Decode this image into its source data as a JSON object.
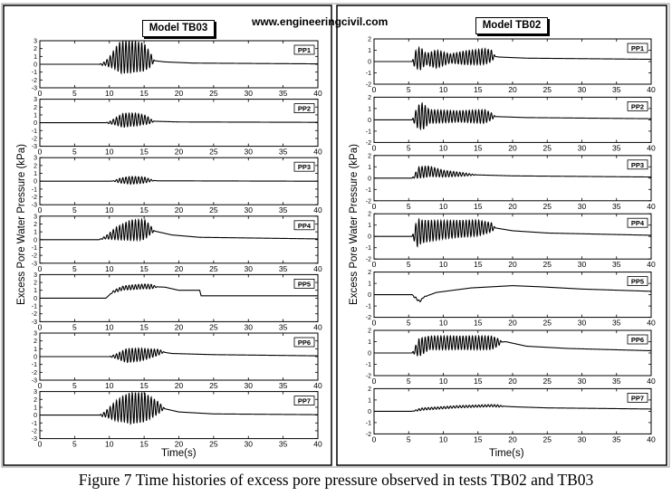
{
  "watermark": "www.engineeringcivil.com",
  "caption": "Figure 7 Time histories of excess pore pressure observed in tests TB02 and TB03",
  "chart_data": [
    {
      "type": "line",
      "title": "Model TB03",
      "xlabel": "Time(s)",
      "ylabel": "Excess Pore Water Pressure (kPa)",
      "xlim": [
        0,
        40
      ],
      "xticks": [
        0,
        5,
        10,
        15,
        20,
        25,
        30,
        35,
        40
      ],
      "ylim": [
        -3,
        3
      ],
      "yticks": [
        3,
        2,
        1,
        0,
        -1,
        -2,
        -3
      ],
      "grid": false,
      "series": [
        {
          "name": "PP1",
          "values": [
            [
              0,
              0
            ],
            [
              9,
              0
            ],
            [
              10,
              0.3
            ],
            [
              11,
              0.8
            ],
            [
              13,
              1.0
            ],
            [
              15,
              0.9
            ],
            [
              16,
              0.5
            ],
            [
              18,
              0.3
            ],
            [
              22,
              0.15
            ],
            [
              40,
              0.05
            ]
          ],
          "amp": [
            [
              8.5,
              0
            ],
            [
              9.5,
              0.3
            ],
            [
              10.5,
              1.0
            ],
            [
              11.5,
              2.0
            ],
            [
              13,
              2.1
            ],
            [
              15,
              1.8
            ],
            [
              16,
              0.8
            ],
            [
              16.5,
              0
            ]
          ]
        },
        {
          "name": "PP2",
          "values": [
            [
              0,
              0
            ],
            [
              10,
              0
            ],
            [
              11,
              0.2
            ],
            [
              13,
              0.4
            ],
            [
              15,
              0.4
            ],
            [
              16,
              0.2
            ],
            [
              20,
              0.1
            ],
            [
              40,
              0.05
            ]
          ],
          "amp": [
            [
              9.5,
              0
            ],
            [
              10.5,
              0.3
            ],
            [
              12,
              0.9
            ],
            [
              14,
              0.8
            ],
            [
              15.5,
              0.5
            ],
            [
              16.5,
              0
            ]
          ]
        },
        {
          "name": "PP3",
          "values": [
            [
              0,
              0
            ],
            [
              10,
              0
            ],
            [
              12,
              0.1
            ],
            [
              15,
              0.15
            ],
            [
              17,
              0.05
            ],
            [
              40,
              0
            ]
          ],
          "amp": [
            [
              10.5,
              0
            ],
            [
              11.5,
              0.3
            ],
            [
              13,
              0.5
            ],
            [
              15,
              0.4
            ],
            [
              16.5,
              0
            ]
          ]
        },
        {
          "name": "PP4",
          "values": [
            [
              0,
              0
            ],
            [
              8.5,
              0
            ],
            [
              9.5,
              0.3
            ],
            [
              11,
              0.8
            ],
            [
              13,
              1.2
            ],
            [
              15.5,
              1.3
            ],
            [
              16.5,
              1.1
            ],
            [
              19,
              0.6
            ],
            [
              23,
              0.3
            ],
            [
              40,
              0.1
            ]
          ],
          "amp": [
            [
              8.5,
              0
            ],
            [
              9.5,
              0.2
            ],
            [
              11,
              0.8
            ],
            [
              13,
              1.3
            ],
            [
              15,
              1.3
            ],
            [
              16,
              0.5
            ],
            [
              16.5,
              0
            ]
          ]
        },
        {
          "name": "PP5",
          "values": [
            [
              0,
              0
            ],
            [
              9.5,
              0
            ],
            [
              10.5,
              0.8
            ],
            [
              12,
              1.3
            ],
            [
              15,
              1.5
            ],
            [
              18,
              1.4
            ],
            [
              20,
              1.0
            ],
            [
              23,
              1.0
            ],
            [
              23.2,
              0.3
            ],
            [
              40,
              0.3
            ]
          ],
          "amp": [
            [
              10,
              0
            ],
            [
              11,
              0.2
            ],
            [
              13,
              0.3
            ],
            [
              16,
              0.3
            ],
            [
              17,
              0
            ]
          ]
        },
        {
          "name": "PP6",
          "values": [
            [
              0,
              0
            ],
            [
              10,
              0
            ],
            [
              12,
              0.1
            ],
            [
              15,
              0.3
            ],
            [
              17.5,
              0.6
            ],
            [
              19,
              0.4
            ],
            [
              25,
              0.25
            ],
            [
              40,
              0.1
            ]
          ],
          "amp": [
            [
              10,
              0
            ],
            [
              11,
              0.3
            ],
            [
              12.5,
              0.9
            ],
            [
              14.5,
              0.8
            ],
            [
              17,
              0.4
            ],
            [
              18,
              0
            ]
          ]
        },
        {
          "name": "PP7",
          "values": [
            [
              0,
              0
            ],
            [
              9,
              0
            ],
            [
              10,
              0.3
            ],
            [
              12,
              0.8
            ],
            [
              15,
              1.0
            ],
            [
              17.5,
              0.9
            ],
            [
              20,
              0.4
            ],
            [
              25,
              0.15
            ],
            [
              40,
              0.05
            ]
          ],
          "amp": [
            [
              8.5,
              0
            ],
            [
              9.5,
              0.4
            ],
            [
              11,
              1.3
            ],
            [
              13,
              2.0
            ],
            [
              15,
              1.9
            ],
            [
              17,
              0.8
            ],
            [
              18,
              0
            ]
          ]
        }
      ]
    },
    {
      "type": "line",
      "title": "Model TB02",
      "xlabel": "Time(s)",
      "ylabel": "Excess Pore Water Pressure (kPa)",
      "xlim": [
        0,
        40
      ],
      "xticks": [
        0,
        5,
        10,
        15,
        20,
        25,
        30,
        35,
        40
      ],
      "ylim": [
        -2,
        2
      ],
      "yticks": [
        2,
        1,
        0,
        -1,
        -2
      ],
      "grid": false,
      "series": [
        {
          "name": "PP1",
          "values": [
            [
              0,
              0
            ],
            [
              5.5,
              0
            ],
            [
              6.5,
              0.3
            ],
            [
              8,
              0.2
            ],
            [
              12,
              0.3
            ],
            [
              15,
              0.4
            ],
            [
              17,
              0.5
            ],
            [
              18,
              0.4
            ],
            [
              22,
              0.3
            ],
            [
              40,
              0.2
            ]
          ],
          "amp": [
            [
              5.5,
              0
            ],
            [
              6,
              0.8
            ],
            [
              6.7,
              1.0
            ],
            [
              7.5,
              0.5
            ],
            [
              9,
              0.8
            ],
            [
              11,
              0.4
            ],
            [
              13,
              0.6
            ],
            [
              16,
              0.7
            ],
            [
              17,
              0.5
            ],
            [
              17.5,
              0
            ]
          ]
        },
        {
          "name": "PP2",
          "values": [
            [
              0,
              0
            ],
            [
              5.5,
              0
            ],
            [
              6.5,
              0.3
            ],
            [
              10,
              0.3
            ],
            [
              15,
              0.3
            ],
            [
              17,
              0.3
            ],
            [
              22,
              0.2
            ],
            [
              40,
              0.1
            ]
          ],
          "amp": [
            [
              5.5,
              0
            ],
            [
              6.3,
              1.0
            ],
            [
              7,
              1.2
            ],
            [
              8,
              0.6
            ],
            [
              12,
              0.5
            ],
            [
              16,
              0.6
            ],
            [
              17,
              0.3
            ],
            [
              17.5,
              0
            ]
          ]
        },
        {
          "name": "PP3",
          "values": [
            [
              0,
              0
            ],
            [
              5.5,
              0
            ],
            [
              6.5,
              0.5
            ],
            [
              8,
              0.6
            ],
            [
              10,
              0.4
            ],
            [
              14,
              0.3
            ],
            [
              20,
              0.2
            ],
            [
              40,
              0.1
            ]
          ],
          "amp": [
            [
              5.5,
              0
            ],
            [
              6.5,
              0.5
            ],
            [
              7.5,
              0.5
            ],
            [
              10,
              0.3
            ],
            [
              13,
              0.15
            ],
            [
              15,
              0
            ]
          ]
        },
        {
          "name": "PP4",
          "values": [
            [
              0,
              0
            ],
            [
              5.5,
              0
            ],
            [
              6.5,
              0.4
            ],
            [
              10,
              0.6
            ],
            [
              17,
              0.8
            ],
            [
              20,
              0.5
            ],
            [
              25,
              0.3
            ],
            [
              40,
              0.1
            ]
          ],
          "amp": [
            [
              5.5,
              0
            ],
            [
              6.2,
              1.2
            ],
            [
              7,
              1.0
            ],
            [
              10,
              0.8
            ],
            [
              15,
              0.7
            ],
            [
              17,
              0.4
            ],
            [
              17.5,
              0
            ]
          ]
        },
        {
          "name": "PP5",
          "values": [
            [
              0,
              0
            ],
            [
              5.5,
              0
            ],
            [
              6,
              -0.3
            ],
            [
              6.6,
              -0.6
            ],
            [
              7.2,
              -0.2
            ],
            [
              9,
              0.2
            ],
            [
              14,
              0.6
            ],
            [
              20,
              0.8
            ],
            [
              24,
              0.7
            ],
            [
              30,
              0.5
            ],
            [
              40,
              0.3
            ]
          ],
          "amp": [
            [
              5.5,
              0
            ],
            [
              6,
              0.1
            ],
            [
              7,
              0.05
            ],
            [
              8,
              0
            ]
          ]
        },
        {
          "name": "PP6",
          "values": [
            [
              0,
              0
            ],
            [
              5.5,
              0
            ],
            [
              6.5,
              0.5
            ],
            [
              8,
              0.9
            ],
            [
              12,
              0.9
            ],
            [
              17,
              0.9
            ],
            [
              19,
              1.0
            ],
            [
              22,
              0.6
            ],
            [
              28,
              0.4
            ],
            [
              40,
              0.2
            ]
          ],
          "amp": [
            [
              5.5,
              0
            ],
            [
              6.5,
              0.8
            ],
            [
              8,
              0.6
            ],
            [
              12,
              0.6
            ],
            [
              17,
              0.6
            ],
            [
              18,
              0.3
            ],
            [
              18.5,
              0
            ]
          ]
        },
        {
          "name": "PP7",
          "values": [
            [
              0,
              0
            ],
            [
              5.5,
              0
            ],
            [
              7,
              0.2
            ],
            [
              12,
              0.4
            ],
            [
              17,
              0.5
            ],
            [
              20,
              0.4
            ],
            [
              25,
              0.3
            ],
            [
              40,
              0.2
            ]
          ],
          "amp": [
            [
              5.5,
              0
            ],
            [
              6.5,
              0.1
            ],
            [
              18,
              0.1
            ],
            [
              19,
              0
            ]
          ]
        }
      ]
    }
  ]
}
